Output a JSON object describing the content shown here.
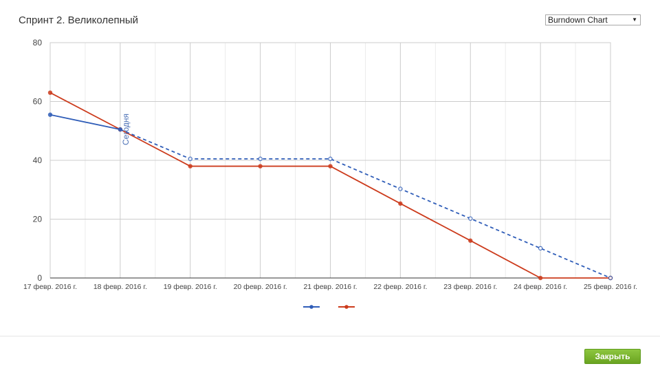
{
  "header": {
    "title": "Спринт 2. Великолепный",
    "chart_select": {
      "selected": "Burndown Chart"
    }
  },
  "footer": {
    "close_label": "Закрыть"
  },
  "colors": {
    "ideal": "#2f5db8",
    "actual": "#cc3b1c",
    "close_button": "#7ab632"
  },
  "chart_data": {
    "type": "line",
    "title": "",
    "xlabel": "",
    "ylabel": "",
    "categories": [
      "17 февр. 2016 г.",
      "18 февр. 2016 г.",
      "19 февр. 2016 г.",
      "20 февр. 2016 г.",
      "21 февр. 2016 г.",
      "22 февр. 2016 г.",
      "23 февр. 2016 г.",
      "24 февр. 2016 г.",
      "25 февр. 2016 г."
    ],
    "y_ticks": [
      "0",
      "20",
      "40",
      "60",
      "80"
    ],
    "ylim": [
      0,
      80
    ],
    "grid": true,
    "legend": "bottom",
    "today_marker": {
      "category": "18 февр. 2016 г.",
      "label": "Сегодня"
    },
    "series": [
      {
        "color": "#2f5db8",
        "style": "solid then dashed after today",
        "values": [
          55.5,
          50.5,
          40.5,
          40.5,
          40.5,
          30.3,
          20.2,
          10.1,
          0
        ]
      },
      {
        "color": "#cc3b1c",
        "style": "solid",
        "values": [
          63,
          50.5,
          38,
          38,
          38,
          25.3,
          12.7,
          0,
          0
        ]
      }
    ]
  }
}
